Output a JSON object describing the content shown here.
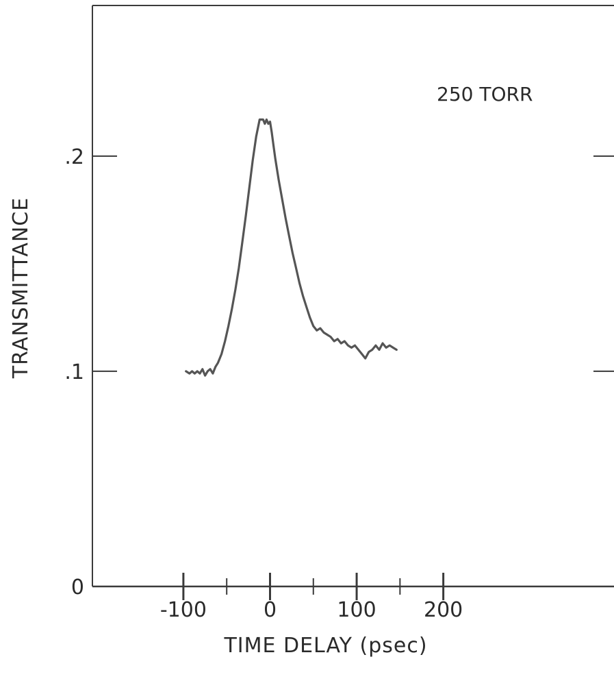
{
  "chart_data": {
    "type": "line",
    "xlabel": "TIME DELAY (psec)",
    "ylabel": "TRANSMITTANCE",
    "annotation": "250 TORR",
    "x_ticks": [
      {
        "value": -100,
        "label": "-100"
      },
      {
        "value": -50,
        "label": ""
      },
      {
        "value": 0,
        "label": "0"
      },
      {
        "value": 50,
        "label": ""
      },
      {
        "value": 100,
        "label": "100"
      },
      {
        "value": 150,
        "label": ""
      },
      {
        "value": 200,
        "label": "200"
      }
    ],
    "y_ticks": [
      {
        "value": 0,
        "label": "0"
      },
      {
        "value": 0.1,
        "label": ".1"
      },
      {
        "value": 0.2,
        "label": ".2"
      }
    ],
    "xlim": [
      -205,
      397
    ],
    "ylim": [
      0,
      0.27
    ],
    "grid": false,
    "series": [
      {
        "x": [
          -97,
          -93,
          -90,
          -87,
          -84,
          -81,
          -78,
          -75,
          -72,
          -69,
          -66,
          -63,
          -60,
          -56,
          -52,
          -48,
          -44,
          -40,
          -36,
          -32,
          -28,
          -24,
          -20,
          -16,
          -12,
          -8,
          -6,
          -4,
          -2,
          0,
          2,
          4,
          6,
          10,
          14,
          18,
          22,
          26,
          30,
          34,
          38,
          42,
          46,
          50,
          54,
          58,
          62,
          66,
          70,
          74,
          78,
          82,
          86,
          90,
          94,
          98,
          102,
          106,
          110,
          114,
          118,
          122,
          126,
          130,
          134,
          138,
          142,
          146
        ],
        "y": [
          0.1,
          0.099,
          0.1,
          0.099,
          0.1,
          0.099,
          0.101,
          0.098,
          0.1,
          0.101,
          0.099,
          0.102,
          0.104,
          0.108,
          0.114,
          0.121,
          0.129,
          0.138,
          0.148,
          0.16,
          0.172,
          0.185,
          0.198,
          0.209,
          0.217,
          0.217,
          0.215,
          0.217,
          0.215,
          0.216,
          0.211,
          0.205,
          0.199,
          0.189,
          0.18,
          0.171,
          0.163,
          0.155,
          0.148,
          0.141,
          0.135,
          0.13,
          0.125,
          0.121,
          0.119,
          0.12,
          0.118,
          0.117,
          0.116,
          0.114,
          0.115,
          0.113,
          0.114,
          0.112,
          0.111,
          0.112,
          0.11,
          0.108,
          0.106,
          0.109,
          0.11,
          0.112,
          0.11,
          0.113,
          0.111,
          0.112,
          0.111,
          0.11
        ]
      }
    ]
  }
}
